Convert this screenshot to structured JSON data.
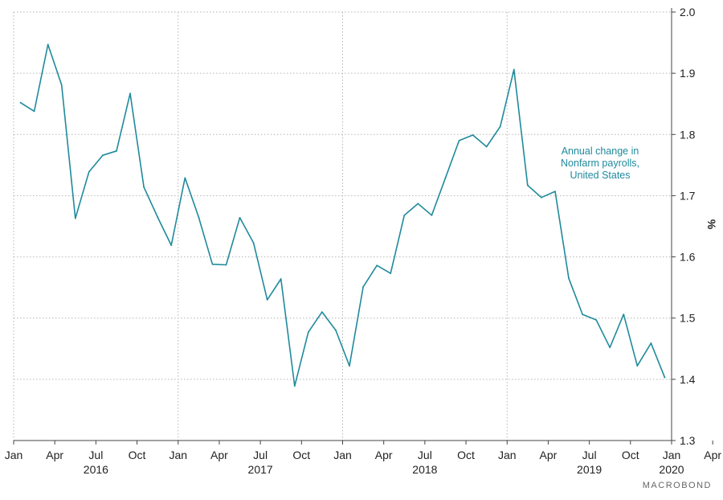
{
  "chart_data": {
    "type": "line",
    "title": "",
    "xlabel": "",
    "ylabel": "%",
    "ylim": [
      1.3,
      2.0
    ],
    "y_ticks": [
      "1.3",
      "1.4",
      "1.5",
      "1.6",
      "1.7",
      "1.8",
      "1.9",
      "2.0"
    ],
    "y_axis_side": "right",
    "grid": true,
    "x_month_ticks": [
      "Jan",
      "Apr",
      "Jul",
      "Oct",
      "Jan",
      "Apr",
      "Jul",
      "Oct",
      "Jan",
      "Apr",
      "Jul",
      "Oct",
      "Jan",
      "Apr",
      "Jul",
      "Oct",
      "Jan",
      "Apr",
      "Jul",
      "Oct",
      "Jan"
    ],
    "x_year_labels": [
      "2016",
      "2017",
      "2018",
      "2019",
      "2020"
    ],
    "series": [
      {
        "name": "Annual change in Nonfarm payrolls, United States",
        "color": "#1f8a9c",
        "x": [
          "2016-01",
          "2016-02",
          "2016-03",
          "2016-04",
          "2016-05",
          "2016-06",
          "2016-07",
          "2016-08",
          "2016-09",
          "2016-10",
          "2016-11",
          "2016-12",
          "2017-01",
          "2017-02",
          "2017-03",
          "2017-04",
          "2017-05",
          "2017-06",
          "2017-07",
          "2017-08",
          "2017-09",
          "2017-10",
          "2017-11",
          "2017-12",
          "2018-01",
          "2018-02",
          "2018-03",
          "2018-04",
          "2018-05",
          "2018-06",
          "2018-07",
          "2018-08",
          "2018-09",
          "2018-10",
          "2018-11",
          "2018-12",
          "2019-01",
          "2019-02",
          "2019-03",
          "2019-04",
          "2019-05",
          "2019-06",
          "2019-07",
          "2019-08",
          "2019-09",
          "2019-10",
          "2019-11",
          "2019-12"
        ],
        "values": [
          1.852,
          1.838,
          1.947,
          1.881,
          1.663,
          1.739,
          1.766,
          1.773,
          1.867,
          1.714,
          1.665,
          1.619,
          1.729,
          1.665,
          1.588,
          1.587,
          1.664,
          1.623,
          1.53,
          1.564,
          1.389,
          1.477,
          1.51,
          1.48,
          1.422,
          1.551,
          1.586,
          1.573,
          1.668,
          1.687,
          1.668,
          1.729,
          1.79,
          1.799,
          1.78,
          1.813,
          1.906,
          1.717,
          1.697,
          1.707,
          1.565,
          1.506,
          1.497,
          1.452,
          1.506,
          1.422,
          1.459,
          1.403
        ]
      }
    ],
    "annotation": [
      "Annual change in",
      "Nonfarm payrolls,",
      "United States"
    ]
  },
  "branding": {
    "watermark": "MACROBOND"
  }
}
